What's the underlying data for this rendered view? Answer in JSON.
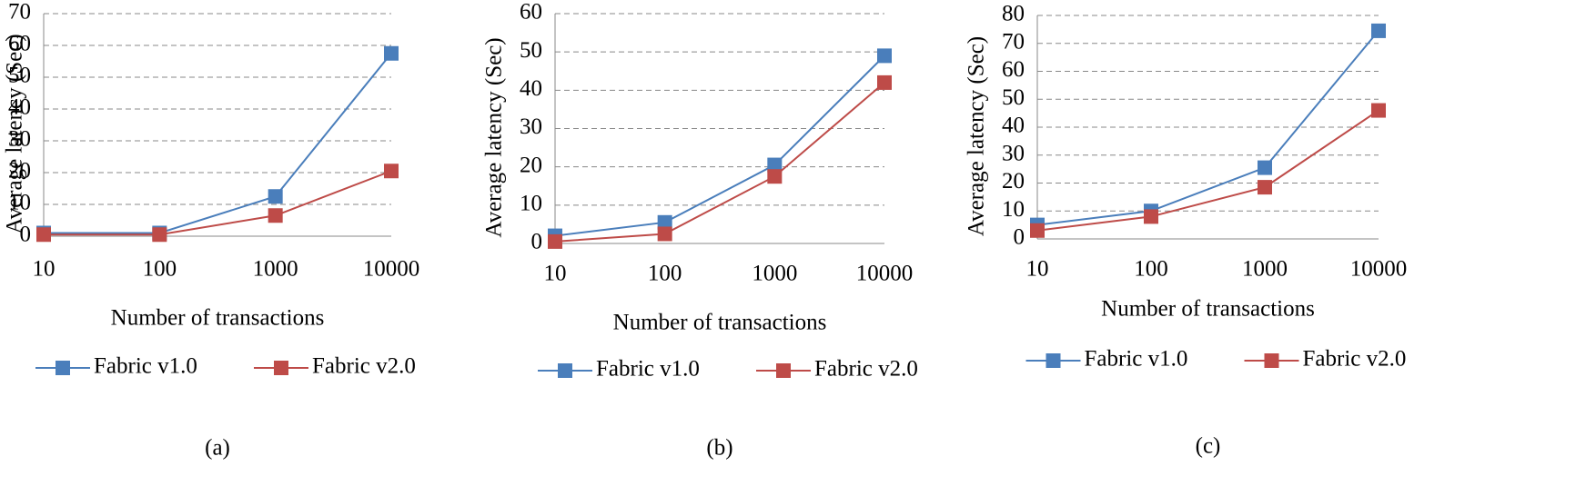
{
  "chart_data": [
    {
      "type": "line",
      "caption": "(a)",
      "xlabel": "Number of  transactions",
      "ylabel": "Average latency (Sec)",
      "categories": [
        "10",
        "100",
        "1000",
        "10000"
      ],
      "series": [
        {
          "name": "Fabric v1.0",
          "color": "#4a7ebb",
          "values": [
            1,
            1,
            12.5,
            57.5
          ]
        },
        {
          "name": "Fabric v2.0",
          "color": "#be4b48",
          "values": [
            0.5,
            0.5,
            6.5,
            20.5
          ]
        }
      ],
      "ylim": [
        0,
        70
      ],
      "yticks": [
        0,
        10,
        20,
        30,
        40,
        50,
        60,
        70
      ],
      "grid": true
    },
    {
      "type": "line",
      "caption": "(b)",
      "xlabel": "Number of transactions",
      "ylabel": "Average latency (Sec)",
      "categories": [
        "10",
        "100",
        "1000",
        "10000"
      ],
      "series": [
        {
          "name": "Fabric v1.0",
          "color": "#4a7ebb",
          "values": [
            2,
            5.5,
            20.5,
            49
          ]
        },
        {
          "name": "Fabric v2.0",
          "color": "#be4b48",
          "values": [
            0.5,
            2.5,
            17.5,
            42
          ]
        }
      ],
      "ylim": [
        0,
        60
      ],
      "yticks": [
        0,
        10,
        20,
        30,
        40,
        50,
        60
      ],
      "grid": true
    },
    {
      "type": "line",
      "caption": "(c)",
      "xlabel": "Number of transactions",
      "ylabel": "Average latency (Sec)",
      "categories": [
        "10",
        "100",
        "1000",
        "10000"
      ],
      "series": [
        {
          "name": "Fabric v1.0",
          "color": "#4a7ebb",
          "values": [
            5,
            10,
            25.5,
            74.5
          ]
        },
        {
          "name": "Fabric v2.0",
          "color": "#be4b48",
          "values": [
            3,
            8,
            18.5,
            46
          ]
        }
      ],
      "ylim": [
        0,
        80
      ],
      "yticks": [
        0,
        10,
        20,
        30,
        40,
        50,
        60,
        70,
        80
      ],
      "grid": true
    }
  ]
}
